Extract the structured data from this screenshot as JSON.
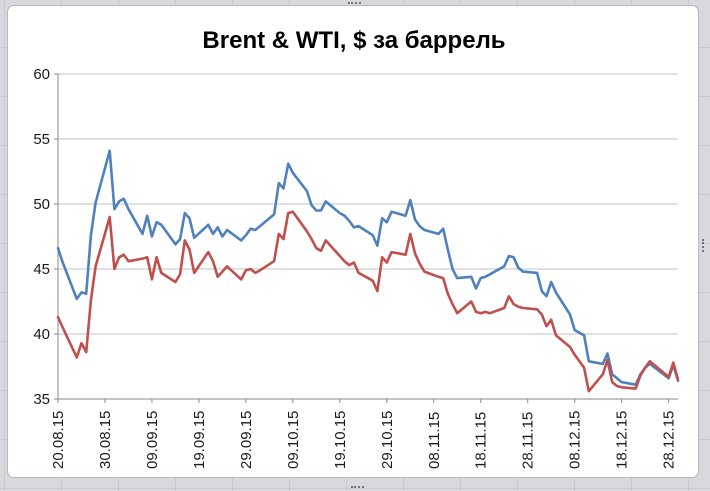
{
  "chart_data": {
    "type": "line",
    "title": "Brent & WTI, $ за баррель",
    "xlabel": "",
    "ylabel": "",
    "ylim": [
      35,
      60
    ],
    "y_ticks": [
      60,
      55,
      50,
      45,
      40,
      35
    ],
    "grid": "horizontal-only",
    "legend": "none",
    "x_axis_note": "daily prices, date axis from 20.08.15 to 30.12.15, major tick every 10 days",
    "xlim_days": [
      0,
      132
    ],
    "x_tick_days": [
      0,
      10,
      20,
      30,
      40,
      50,
      60,
      70,
      80,
      90,
      100,
      110,
      120,
      130
    ],
    "x_tick_labels": [
      "20.08.15",
      "30.08.15",
      "09.09.15",
      "19.09.15",
      "29.09.15",
      "09.10.15",
      "19.10.15",
      "29.10.15",
      "08.11.15",
      "18.11.15",
      "28.11.15",
      "08.12.15",
      "18.12.15",
      "28.12.15"
    ],
    "x_days": [
      0,
      1,
      4,
      5,
      6,
      7,
      8,
      11,
      12,
      13,
      14,
      15,
      18,
      19,
      20,
      21,
      22,
      25,
      26,
      27,
      28,
      29,
      32,
      33,
      34,
      35,
      36,
      39,
      40,
      41,
      42,
      43,
      46,
      47,
      48,
      49,
      50,
      53,
      54,
      55,
      56,
      57,
      60,
      61,
      62,
      63,
      64,
      67,
      68,
      69,
      70,
      71,
      74,
      75,
      76,
      77,
      78,
      81,
      82,
      83,
      84,
      85,
      88,
      89,
      90,
      91,
      92,
      95,
      96,
      97,
      98,
      99,
      102,
      103,
      104,
      105,
      106,
      109,
      110,
      111,
      112,
      113,
      116,
      117,
      118,
      119,
      120,
      123,
      124,
      125,
      126,
      130,
      131,
      132
    ],
    "series": [
      {
        "name": "Brent",
        "color": "#4f81bd",
        "values": [
          46.6,
          45.5,
          42.7,
          43.2,
          43.1,
          47.6,
          50.1,
          54.1,
          49.6,
          50.2,
          50.4,
          49.6,
          47.7,
          49.1,
          47.5,
          48.6,
          48.4,
          46.9,
          47.3,
          49.3,
          48.9,
          47.4,
          48.4,
          47.7,
          48.2,
          47.5,
          48.0,
          47.2,
          47.6,
          48.1,
          48.0,
          48.3,
          49.2,
          51.6,
          51.2,
          53.1,
          52.4,
          51.0,
          49.9,
          49.5,
          49.5,
          50.2,
          49.3,
          49.1,
          48.7,
          48.2,
          48.3,
          47.6,
          46.8,
          48.9,
          48.6,
          49.4,
          49.1,
          50.3,
          48.8,
          48.3,
          48.0,
          47.7,
          48.1,
          46.5,
          45.0,
          44.3,
          44.4,
          43.5,
          44.3,
          44.4,
          44.6,
          45.2,
          46.0,
          45.9,
          45.1,
          44.8,
          44.7,
          43.3,
          42.9,
          44.0,
          43.2,
          41.5,
          40.3,
          40.1,
          39.9,
          37.9,
          37.7,
          38.5,
          36.9,
          36.6,
          36.3,
          36.1,
          36.9,
          37.4,
          37.7,
          36.6,
          37.6,
          36.4
        ]
      },
      {
        "name": "WTI",
        "color": "#c0504d",
        "values": [
          41.3,
          40.5,
          38.2,
          39.3,
          38.6,
          42.6,
          45.2,
          49.0,
          45.0,
          45.9,
          46.1,
          45.6,
          45.8,
          45.9,
          44.2,
          45.9,
          44.7,
          44.0,
          44.6,
          47.2,
          46.5,
          44.7,
          46.3,
          45.6,
          44.4,
          44.8,
          45.2,
          44.2,
          44.9,
          45.0,
          44.7,
          44.9,
          45.6,
          47.7,
          47.3,
          49.3,
          49.4,
          47.9,
          47.3,
          46.6,
          46.4,
          47.2,
          46.0,
          45.6,
          45.3,
          45.5,
          44.7,
          44.1,
          43.3,
          45.9,
          45.5,
          46.3,
          46.1,
          47.7,
          46.2,
          45.4,
          44.8,
          44.4,
          44.3,
          43.1,
          42.3,
          41.6,
          42.5,
          41.7,
          41.6,
          41.7,
          41.6,
          42.0,
          42.9,
          42.3,
          42.1,
          42.0,
          41.9,
          41.5,
          40.6,
          41.1,
          39.9,
          39.0,
          38.4,
          37.9,
          37.4,
          35.6,
          36.9,
          38.0,
          36.3,
          36.0,
          35.9,
          35.8,
          36.8,
          37.4,
          37.9,
          36.7,
          37.8,
          36.5
        ]
      }
    ]
  },
  "colors": {
    "brent": "#4f81bd",
    "wti": "#c0504d",
    "gridline": "#c3c3c3",
    "axis": "#8a8a8a",
    "chart_bg": "#ffffff",
    "sheet_bg": "#d8d9dc",
    "title_text": "#000000",
    "tick_text": "#1a1a1a"
  }
}
